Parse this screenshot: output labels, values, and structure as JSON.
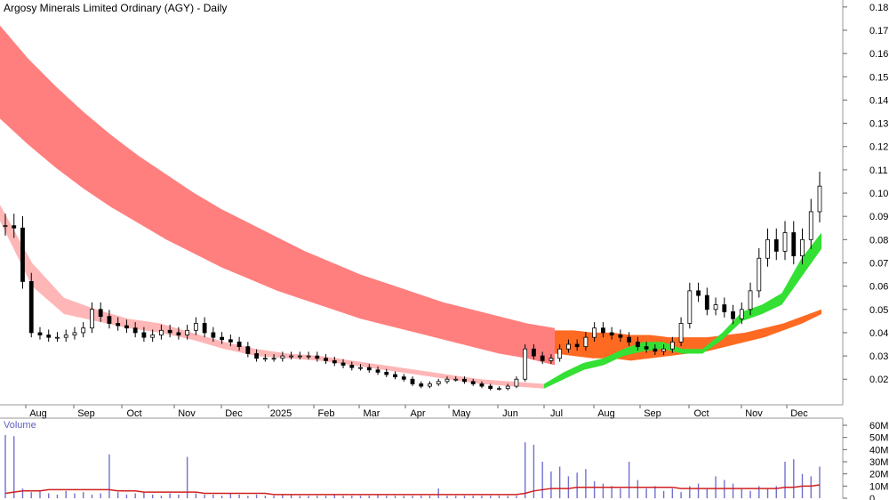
{
  "chart_data": {
    "type": "candlestick",
    "title": "Argosy Minerals Limited Ordinary (AGY) - Daily",
    "volume_label": "Volume",
    "x_tick_labels": [
      "Aug",
      "Sep",
      "Oct",
      "Nov",
      "Dec",
      "2025",
      "Feb",
      "Mar",
      "Apr",
      "May",
      "Jun",
      "Jul",
      "Aug",
      "Sep",
      "Oct",
      "Nov",
      "Dec"
    ],
    "y_tick_labels": [
      "0.18",
      "0.17",
      "0.16",
      "0.15",
      "0.14",
      "0.13",
      "0.12",
      "0.11",
      "0.10",
      "0.09",
      "0.08",
      "0.07",
      "0.06",
      "0.05",
      "0.04",
      "0.03",
      "0.02"
    ],
    "volume_tick_labels": [
      "60M",
      "50M",
      "40M",
      "30M",
      "20M",
      "10M",
      "0"
    ],
    "ylim": [
      0.0,
      0.18
    ],
    "volume_ylim": [
      0,
      60
    ],
    "price_series": [
      {
        "t": 1,
        "close": 0.086
      },
      {
        "t": 2,
        "close": 0.085
      },
      {
        "t": 3,
        "close": 0.062
      },
      {
        "t": 4,
        "close": 0.04
      },
      {
        "t": 5,
        "close": 0.039
      },
      {
        "t": 6,
        "close": 0.038
      },
      {
        "t": 7,
        "close": 0.038
      },
      {
        "t": 8,
        "close": 0.039
      },
      {
        "t": 9,
        "close": 0.04
      },
      {
        "t": 10,
        "close": 0.042
      },
      {
        "t": 11,
        "close": 0.05
      },
      {
        "t": 12,
        "close": 0.047
      },
      {
        "t": 13,
        "close": 0.044
      },
      {
        "t": 14,
        "close": 0.043
      },
      {
        "t": 15,
        "close": 0.042
      },
      {
        "t": 16,
        "close": 0.04
      },
      {
        "t": 17,
        "close": 0.038
      },
      {
        "t": 18,
        "close": 0.039
      },
      {
        "t": 19,
        "close": 0.041
      },
      {
        "t": 20,
        "close": 0.04
      },
      {
        "t": 21,
        "close": 0.039
      },
      {
        "t": 22,
        "close": 0.041
      },
      {
        "t": 23,
        "close": 0.044
      },
      {
        "t": 24,
        "close": 0.04
      },
      {
        "t": 25,
        "close": 0.038
      },
      {
        "t": 26,
        "close": 0.037
      },
      {
        "t": 27,
        "close": 0.036
      },
      {
        "t": 28,
        "close": 0.034
      },
      {
        "t": 29,
        "close": 0.031
      },
      {
        "t": 30,
        "close": 0.029
      },
      {
        "t": 31,
        "close": 0.029
      },
      {
        "t": 32,
        "close": 0.029
      },
      {
        "t": 33,
        "close": 0.03
      },
      {
        "t": 34,
        "close": 0.03
      },
      {
        "t": 35,
        "close": 0.03
      },
      {
        "t": 36,
        "close": 0.03
      },
      {
        "t": 37,
        "close": 0.029
      },
      {
        "t": 38,
        "close": 0.028
      },
      {
        "t": 39,
        "close": 0.027
      },
      {
        "t": 40,
        "close": 0.026
      },
      {
        "t": 41,
        "close": 0.025
      },
      {
        "t": 42,
        "close": 0.025
      },
      {
        "t": 43,
        "close": 0.024
      },
      {
        "t": 44,
        "close": 0.023
      },
      {
        "t": 45,
        "close": 0.022
      },
      {
        "t": 46,
        "close": 0.021
      },
      {
        "t": 47,
        "close": 0.02
      },
      {
        "t": 48,
        "close": 0.018
      },
      {
        "t": 49,
        "close": 0.017
      },
      {
        "t": 50,
        "close": 0.018
      },
      {
        "t": 51,
        "close": 0.019
      },
      {
        "t": 52,
        "close": 0.02
      },
      {
        "t": 53,
        "close": 0.02
      },
      {
        "t": 54,
        "close": 0.019
      },
      {
        "t": 55,
        "close": 0.018
      },
      {
        "t": 56,
        "close": 0.017
      },
      {
        "t": 57,
        "close": 0.016
      },
      {
        "t": 58,
        "close": 0.016
      },
      {
        "t": 59,
        "close": 0.017
      },
      {
        "t": 60,
        "close": 0.02
      },
      {
        "t": 61,
        "close": 0.033
      },
      {
        "t": 62,
        "close": 0.03
      },
      {
        "t": 63,
        "close": 0.028
      },
      {
        "t": 64,
        "close": 0.029
      },
      {
        "t": 65,
        "close": 0.033
      },
      {
        "t": 66,
        "close": 0.035
      },
      {
        "t": 67,
        "close": 0.034
      },
      {
        "t": 68,
        "close": 0.038
      },
      {
        "t": 69,
        "close": 0.042
      },
      {
        "t": 70,
        "close": 0.04
      },
      {
        "t": 71,
        "close": 0.039
      },
      {
        "t": 72,
        "close": 0.038
      },
      {
        "t": 73,
        "close": 0.036
      },
      {
        "t": 74,
        "close": 0.034
      },
      {
        "t": 75,
        "close": 0.033
      },
      {
        "t": 76,
        "close": 0.032
      },
      {
        "t": 77,
        "close": 0.033
      },
      {
        "t": 78,
        "close": 0.036
      },
      {
        "t": 79,
        "close": 0.044
      },
      {
        "t": 80,
        "close": 0.058
      },
      {
        "t": 81,
        "close": 0.056
      },
      {
        "t": 82,
        "close": 0.05
      },
      {
        "t": 83,
        "close": 0.052
      },
      {
        "t": 84,
        "close": 0.049
      },
      {
        "t": 85,
        "close": 0.046
      },
      {
        "t": 86,
        "close": 0.05
      },
      {
        "t": 87,
        "close": 0.058
      },
      {
        "t": 88,
        "close": 0.072
      },
      {
        "t": 89,
        "close": 0.08
      },
      {
        "t": 90,
        "close": 0.075
      },
      {
        "t": 91,
        "close": 0.083
      },
      {
        "t": 92,
        "close": 0.073
      },
      {
        "t": 93,
        "close": 0.08
      },
      {
        "t": 94,
        "close": 0.092
      },
      {
        "t": 95,
        "close": 0.103
      }
    ],
    "long_band": {
      "upper": [
        0.172,
        0.158,
        0.146,
        0.135,
        0.125,
        0.116,
        0.108,
        0.1,
        0.093,
        0.087,
        0.081,
        0.075,
        0.07,
        0.065,
        0.061,
        0.057,
        0.053,
        0.05,
        0.047,
        0.044,
        0.042
      ],
      "lower": [
        0.132,
        0.121,
        0.111,
        0.102,
        0.094,
        0.087,
        0.08,
        0.074,
        0.068,
        0.063,
        0.058,
        0.054,
        0.05,
        0.046,
        0.043,
        0.04,
        0.037,
        0.034,
        0.031,
        0.029,
        0.026
      ]
    },
    "short_band": {
      "upper": [
        0.095,
        0.07,
        0.055,
        0.05,
        0.046,
        0.044,
        0.04,
        0.036,
        0.033,
        0.031,
        0.03,
        0.028,
        0.026,
        0.024,
        0.022,
        0.02,
        0.019,
        0.018
      ],
      "lower": [
        0.088,
        0.06,
        0.048,
        0.045,
        0.042,
        0.04,
        0.037,
        0.033,
        0.03,
        0.029,
        0.028,
        0.026,
        0.024,
        0.022,
        0.02,
        0.018,
        0.017,
        0.016
      ]
    },
    "volume": [
      52,
      51,
      8,
      5,
      6,
      4,
      3,
      6,
      4,
      5,
      3,
      4,
      36,
      5,
      3,
      4,
      5,
      3,
      2,
      4,
      3,
      34,
      4,
      3,
      3,
      2,
      4,
      3,
      2,
      3,
      2,
      2,
      3,
      3,
      2,
      2,
      2,
      2,
      3,
      2,
      2,
      2,
      2,
      3,
      2,
      2,
      2,
      2,
      2,
      2,
      8,
      2,
      2,
      2,
      2,
      2,
      2,
      2,
      2,
      2,
      46,
      44,
      30,
      22,
      26,
      18,
      21,
      24,
      14,
      12,
      10,
      8,
      30,
      15,
      8,
      10,
      6,
      8,
      5,
      10,
      12,
      8,
      18,
      15,
      12,
      8,
      6,
      10,
      8,
      10,
      30,
      32,
      20,
      18,
      26
    ],
    "volume_ma": [
      4,
      5,
      6,
      6,
      6,
      7,
      7,
      7,
      7,
      7,
      7,
      7,
      7,
      6,
      6,
      6,
      5,
      5,
      5,
      5,
      5,
      5,
      5,
      4,
      4,
      4,
      4,
      4,
      4,
      4,
      4,
      3,
      3,
      3,
      3,
      3,
      3,
      3,
      3,
      3,
      3,
      3,
      3,
      3,
      3,
      3,
      3,
      3,
      3,
      3,
      3,
      3,
      3,
      3,
      3,
      3,
      3,
      3,
      3,
      3,
      4,
      6,
      7,
      8,
      8,
      8,
      9,
      9,
      9,
      9,
      9,
      9,
      9,
      9,
      9,
      9,
      9,
      9,
      8,
      8,
      8,
      8,
      8,
      8,
      8,
      8,
      8,
      8,
      8,
      8,
      9,
      9,
      10,
      10,
      11
    ],
    "colors": {
      "long_band": "#ff7f7f",
      "short_band": "#ffb6b6",
      "uptrend_band_green": "#33e033",
      "uptrend_band_orange": "#ff6a22",
      "volume_bars": "#7070d0",
      "volume_ma": "#d02020",
      "axis_text": "#000000"
    }
  }
}
